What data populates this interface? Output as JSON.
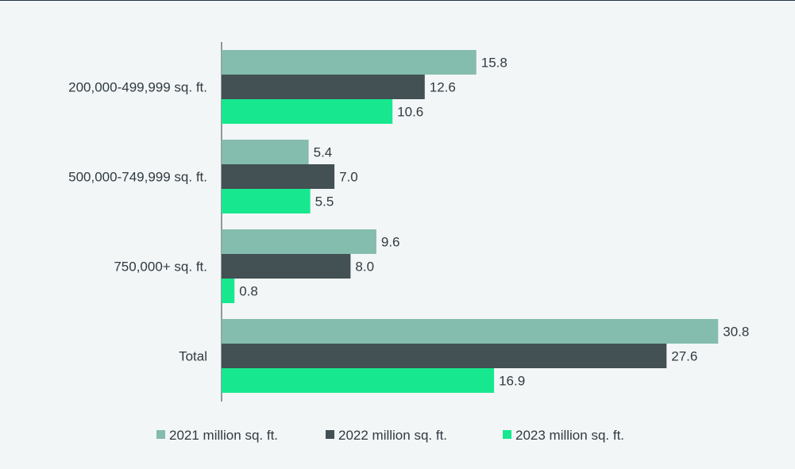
{
  "chart_data": {
    "type": "bar",
    "orientation": "horizontal",
    "title": "",
    "xlabel": "",
    "ylabel": "",
    "xlim": [
      0,
      33
    ],
    "grid": false,
    "legend_position": "bottom",
    "categories": [
      "200,000-499,999 sq. ft.",
      "500,000-749,999 sq. ft.",
      "750,000+ sq. ft.",
      "Total"
    ],
    "series": [
      {
        "name": "2021 million sq. ft.",
        "color": "#84bcad",
        "values": [
          15.8,
          5.4,
          9.6,
          30.8
        ],
        "labels": [
          "15.8",
          "5.4",
          "9.6",
          "30.8"
        ]
      },
      {
        "name": "2022 million sq. ft.",
        "color": "#435054",
        "values": [
          12.6,
          7.0,
          8.0,
          27.6
        ],
        "labels": [
          "12.6",
          "7.0",
          "8.0",
          "27.6"
        ]
      },
      {
        "name": "2023 million sq. ft.",
        "color": "#17e88f",
        "values": [
          10.6,
          5.5,
          0.8,
          16.9
        ],
        "labels": [
          "10.6",
          "5.5",
          "0.8",
          "16.9"
        ]
      }
    ]
  }
}
